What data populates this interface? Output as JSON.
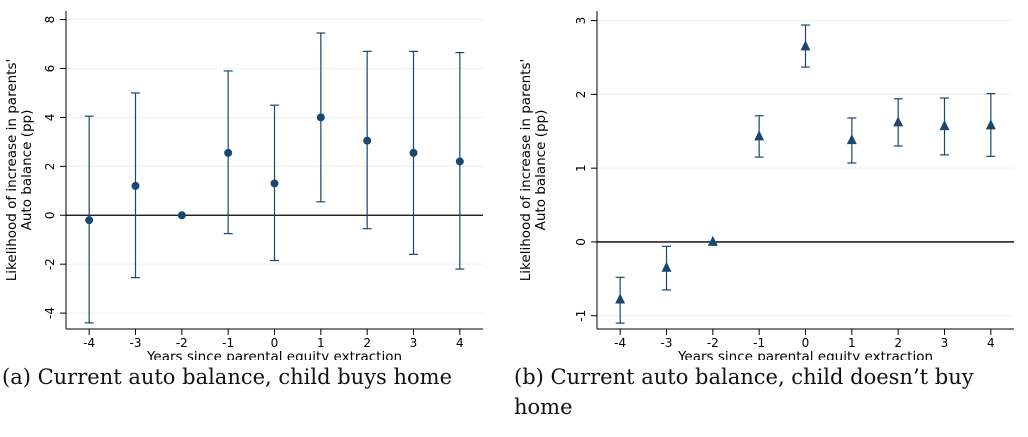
{
  "panels": [
    {
      "caption": "(a) Current auto balance, child buys home",
      "chart_data": {
        "type": "scatter",
        "marker": "circle",
        "color": "#1a476f",
        "x": [
          -4,
          -3,
          -2,
          -1,
          0,
          1,
          2,
          3,
          4
        ],
        "y": [
          -0.2,
          1.2,
          0.0,
          2.55,
          1.3,
          4.0,
          3.05,
          2.55,
          2.2
        ],
        "ci_low": [
          -4.4,
          -2.55,
          0.0,
          -0.75,
          -1.85,
          0.55,
          -0.55,
          -1.6,
          -2.2
        ],
        "ci_high": [
          4.05,
          5.0,
          0.0,
          5.9,
          4.5,
          7.45,
          6.7,
          6.7,
          6.65
        ],
        "xticks": [
          "-4",
          "-3",
          "-2",
          "-1",
          "0",
          "1",
          "2",
          "3",
          "4"
        ],
        "yticks": [
          "-4",
          "-2",
          "0",
          "2",
          "4",
          "6",
          "8"
        ],
        "ytick_values": [
          -4,
          -2,
          0,
          2,
          4,
          6,
          8
        ],
        "xlabel": "Years since parental equity extraction",
        "ylabel": [
          "Likelihood of increase in parents'",
          "Auto balance (pp)"
        ],
        "xlim": [
          -4.5,
          4.5
        ],
        "ylim": [
          -4.65,
          8.35
        ],
        "grid": true,
        "zero_line": true
      }
    },
    {
      "caption": "(b) Current auto balance, child doesn’t buy home",
      "chart_data": {
        "type": "scatter",
        "marker": "triangle",
        "color": "#1a476f",
        "x": [
          -4,
          -3,
          -2,
          -1,
          0,
          1,
          2,
          3,
          4
        ],
        "y": [
          -0.78,
          -0.35,
          0.0,
          1.43,
          2.65,
          1.38,
          1.62,
          1.57,
          1.58
        ],
        "ci_low": [
          -1.1,
          -0.65,
          0.0,
          1.15,
          2.37,
          1.07,
          1.3,
          1.18,
          1.16
        ],
        "ci_high": [
          -0.48,
          -0.06,
          0.0,
          1.71,
          2.94,
          1.68,
          1.94,
          1.95,
          2.01
        ],
        "xticks": [
          "-4",
          "-3",
          "-2",
          "-1",
          "0",
          "1",
          "2",
          "3",
          "4"
        ],
        "yticks": [
          "-1",
          "0",
          "1",
          "2",
          "3"
        ],
        "ytick_values": [
          -1,
          0,
          1,
          2,
          3
        ],
        "xlabel": "Years since parental equity extraction",
        "ylabel": [
          "Likelihood of increase in parents'",
          "Auto balance (pp)"
        ],
        "xlim": [
          -4.5,
          4.5
        ],
        "ylim": [
          -1.18,
          3.13
        ],
        "grid": true,
        "zero_line": true
      }
    }
  ]
}
